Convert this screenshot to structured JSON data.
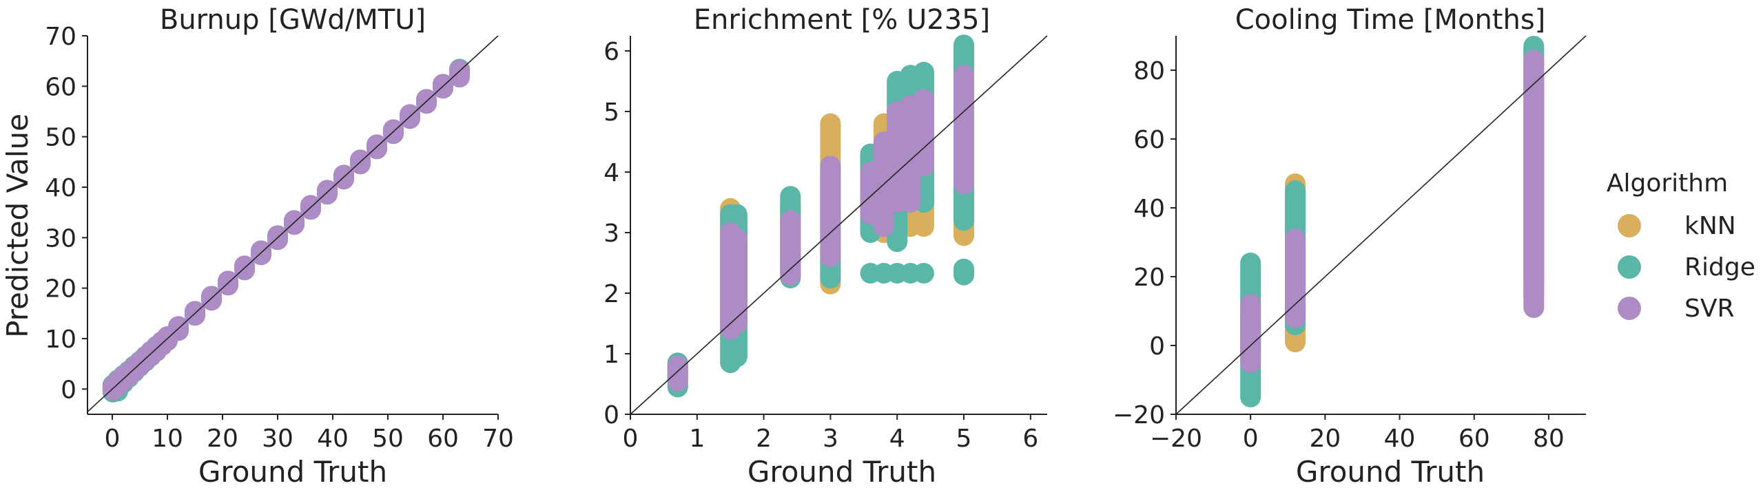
{
  "colors": {
    "knn": "#d9ae5c",
    "ridge": "#5ab7a7",
    "svr": "#ad8bc5",
    "axis": "#222222"
  },
  "legend": {
    "title": "Algorithm",
    "position": "right",
    "items": [
      {
        "label": "kNN",
        "color": "#d9ae5c"
      },
      {
        "label": "Ridge",
        "color": "#5ab7a7"
      },
      {
        "label": "SVR",
        "color": "#ad8bc5"
      }
    ]
  },
  "chart_data": [
    {
      "type": "scatter",
      "title": "Burnup [GWd/MTU]",
      "xlabel": "Ground Truth",
      "ylabel": "Predicted Value",
      "xlim": [
        -4.5,
        70
      ],
      "ylim": [
        -5,
        70
      ],
      "xticks": [
        0,
        10,
        20,
        30,
        40,
        50,
        60,
        70
      ],
      "yticks": [
        0,
        10,
        20,
        30,
        40,
        50,
        60,
        70
      ],
      "grid": false,
      "diagonal": true,
      "series": [
        {
          "name": "kNN",
          "color": "#d9ae5c",
          "points": [
            {
              "x": 0.1,
              "y": 0.1,
              "y2": 0.1
            },
            {
              "x": 1,
              "y": 1,
              "y2": 1
            },
            {
              "x": 2,
              "y": 2,
              "y2": 2
            },
            {
              "x": 3,
              "y": 3,
              "y2": 3
            },
            {
              "x": 4,
              "y": 4,
              "y2": 4
            },
            {
              "x": 5,
              "y": 5,
              "y2": 5
            },
            {
              "x": 6,
              "y": 6,
              "y2": 6
            },
            {
              "x": 7,
              "y": 7,
              "y2": 7
            },
            {
              "x": 8,
              "y": 8,
              "y2": 8
            },
            {
              "x": 9,
              "y": 9,
              "y2": 9
            },
            {
              "x": 10,
              "y": 10,
              "y2": 10
            },
            {
              "x": 12,
              "y": 12,
              "y2": 12
            },
            {
              "x": 15,
              "y": 15,
              "y2": 15
            },
            {
              "x": 18,
              "y": 18,
              "y2": 18
            },
            {
              "x": 21,
              "y": 21,
              "y2": 21
            },
            {
              "x": 24,
              "y": 24,
              "y2": 24
            },
            {
              "x": 27,
              "y": 27,
              "y2": 27
            },
            {
              "x": 30,
              "y": 30,
              "y2": 30
            },
            {
              "x": 33,
              "y": 33,
              "y2": 33
            },
            {
              "x": 36,
              "y": 36,
              "y2": 36
            },
            {
              "x": 39,
              "y": 39,
              "y2": 39
            },
            {
              "x": 42,
              "y": 42,
              "y2": 42
            },
            {
              "x": 45,
              "y": 45,
              "y2": 45
            },
            {
              "x": 48,
              "y": 48,
              "y2": 48
            },
            {
              "x": 51,
              "y": 51,
              "y2": 51
            },
            {
              "x": 54,
              "y": 54,
              "y2": 54
            },
            {
              "x": 57,
              "y": 57,
              "y2": 57
            },
            {
              "x": 60,
              "y": 60,
              "y2": 60
            },
            {
              "x": 63,
              "y": 63,
              "y2": 63
            }
          ]
        },
        {
          "name": "Ridge",
          "color": "#5ab7a7",
          "points": [
            {
              "x": 0.1,
              "y": -0.6,
              "y2": 0.8
            },
            {
              "x": 1,
              "y": -0.4,
              "y2": 1.8
            },
            {
              "x": 2,
              "y": 1.2,
              "y2": 2.7
            },
            {
              "x": 3,
              "y": 2.3,
              "y2": 3.6
            },
            {
              "x": 4,
              "y": 3.4,
              "y2": 4.6
            },
            {
              "x": 5,
              "y": 4.5,
              "y2": 5.5
            },
            {
              "x": 6,
              "y": 5.5,
              "y2": 6.5
            },
            {
              "x": 7,
              "y": 6.5,
              "y2": 7.5
            },
            {
              "x": 8,
              "y": 7.5,
              "y2": 8.5
            },
            {
              "x": 9,
              "y": 8.6,
              "y2": 9.4
            },
            {
              "x": 10,
              "y": 9.6,
              "y2": 10.4
            },
            {
              "x": 12,
              "y": 11.6,
              "y2": 12.4
            },
            {
              "x": 15,
              "y": 14.6,
              "y2": 15.4
            },
            {
              "x": 18,
              "y": 17.6,
              "y2": 18.4
            },
            {
              "x": 21,
              "y": 20.6,
              "y2": 21.4
            },
            {
              "x": 24,
              "y": 23.6,
              "y2": 24.4
            },
            {
              "x": 27,
              "y": 26.6,
              "y2": 27.4
            },
            {
              "x": 30,
              "y": 29.6,
              "y2": 30.4
            },
            {
              "x": 33,
              "y": 32.6,
              "y2": 33.4
            },
            {
              "x": 36,
              "y": 35.6,
              "y2": 36.4
            },
            {
              "x": 39,
              "y": 38.6,
              "y2": 39.4
            },
            {
              "x": 42,
              "y": 41.6,
              "y2": 42.4
            },
            {
              "x": 45,
              "y": 44.6,
              "y2": 45.4
            },
            {
              "x": 48,
              "y": 47.6,
              "y2": 48.4
            },
            {
              "x": 51,
              "y": 50.6,
              "y2": 51.4
            },
            {
              "x": 54,
              "y": 53.6,
              "y2": 54.4
            },
            {
              "x": 57,
              "y": 56.6,
              "y2": 57.4
            },
            {
              "x": 60,
              "y": 59.6,
              "y2": 60.4
            },
            {
              "x": 63,
              "y": 62.4,
              "y2": 63.4
            }
          ]
        },
        {
          "name": "SVR",
          "color": "#ad8bc5",
          "points": [
            {
              "x": 0.1,
              "y": -0.2,
              "y2": 0.5
            },
            {
              "x": 1,
              "y": 0.6,
              "y2": 1.5
            },
            {
              "x": 2,
              "y": 1.6,
              "y2": 2.5
            },
            {
              "x": 3,
              "y": 2.6,
              "y2": 3.4
            },
            {
              "x": 4,
              "y": 3.6,
              "y2": 4.4
            },
            {
              "x": 5,
              "y": 4.6,
              "y2": 5.4
            },
            {
              "x": 6,
              "y": 5.6,
              "y2": 6.4
            },
            {
              "x": 7,
              "y": 6.6,
              "y2": 7.4
            },
            {
              "x": 8,
              "y": 7.6,
              "y2": 8.4
            },
            {
              "x": 9,
              "y": 8.6,
              "y2": 9.4
            },
            {
              "x": 10,
              "y": 9.6,
              "y2": 10.4
            },
            {
              "x": 12,
              "y": 11.6,
              "y2": 12.4
            },
            {
              "x": 15,
              "y": 14.6,
              "y2": 15.4
            },
            {
              "x": 18,
              "y": 17.6,
              "y2": 18.4
            },
            {
              "x": 21,
              "y": 20.6,
              "y2": 21.4
            },
            {
              "x": 24,
              "y": 23.6,
              "y2": 24.4
            },
            {
              "x": 27,
              "y": 26.6,
              "y2": 27.4
            },
            {
              "x": 30,
              "y": 29.6,
              "y2": 30.4
            },
            {
              "x": 33,
              "y": 32.6,
              "y2": 33.4
            },
            {
              "x": 36,
              "y": 35.6,
              "y2": 36.4
            },
            {
              "x": 39,
              "y": 38.6,
              "y2": 39.4
            },
            {
              "x": 42,
              "y": 41.6,
              "y2": 42.4
            },
            {
              "x": 45,
              "y": 44.6,
              "y2": 45.4
            },
            {
              "x": 48,
              "y": 47.6,
              "y2": 48.4
            },
            {
              "x": 51,
              "y": 50.6,
              "y2": 51.4
            },
            {
              "x": 54,
              "y": 53.6,
              "y2": 54.4
            },
            {
              "x": 57,
              "y": 56.6,
              "y2": 57.4
            },
            {
              "x": 60,
              "y": 59.6,
              "y2": 60.4
            },
            {
              "x": 63,
              "y": 61.8,
              "y2": 63.2
            }
          ]
        }
      ]
    },
    {
      "type": "scatter",
      "title": "Enrichment [% U235]",
      "xlabel": "Ground Truth",
      "ylabel": "",
      "xlim": [
        0,
        6.25
      ],
      "ylim": [
        0,
        6.25
      ],
      "xticks": [
        0,
        1,
        2,
        3,
        4,
        5,
        6
      ],
      "yticks": [
        0,
        1,
        2,
        3,
        4,
        5,
        6
      ],
      "grid": false,
      "diagonal": true,
      "series": [
        {
          "name": "kNN",
          "color": "#d9ae5c",
          "points": [
            {
              "x": 0.71,
              "y": 0.6,
              "y2": 0.8
            },
            {
              "x": 1.5,
              "y": 1.5,
              "y2": 3.4
            },
            {
              "x": 1.6,
              "y": 1.5,
              "y2": 3.2
            },
            {
              "x": 2.4,
              "y": 2.3,
              "y2": 3.5
            },
            {
              "x": 3.0,
              "y": 2.15,
              "y2": 4.8
            },
            {
              "x": 3.6,
              "y": 3.1,
              "y2": 4.2
            },
            {
              "x": 3.8,
              "y": 3.0,
              "y2": 4.8
            },
            {
              "x": 4.0,
              "y": 3.0,
              "y2": 5.0
            },
            {
              "x": 4.2,
              "y": 3.1,
              "y2": 5.3
            },
            {
              "x": 4.4,
              "y": 3.1,
              "y2": 5.4
            },
            {
              "x": 5.0,
              "y": 2.95,
              "y2": 5.6
            }
          ]
        },
        {
          "name": "Ridge",
          "color": "#5ab7a7",
          "points": [
            {
              "x": 0.71,
              "y": 0.45,
              "y2": 0.85
            },
            {
              "x": 1.5,
              "y": 0.85,
              "y2": 3.3
            },
            {
              "x": 1.6,
              "y": 0.95,
              "y2": 3.3
            },
            {
              "x": 2.4,
              "y": 2.25,
              "y2": 3.6
            },
            {
              "x": 3.0,
              "y": 2.25,
              "y2": 4.0
            },
            {
              "x": 3.6,
              "y": 3.0,
              "y2": 4.3
            },
            {
              "x": 3.8,
              "y": 3.3,
              "y2": 4.4
            },
            {
              "x": 4.0,
              "y": 2.85,
              "y2": 5.5
            },
            {
              "x": 4.2,
              "y": 3.5,
              "y2": 5.6
            },
            {
              "x": 4.4,
              "y": 3.5,
              "y2": 5.65
            },
            {
              "x": 5.0,
              "y": 3.2,
              "y2": 6.1
            },
            {
              "x": 3.6,
              "y": 2.33,
              "y2": 2.33
            },
            {
              "x": 3.8,
              "y": 2.33,
              "y2": 2.33
            },
            {
              "x": 4.0,
              "y": 2.33,
              "y2": 2.33
            },
            {
              "x": 4.2,
              "y": 2.33,
              "y2": 2.33
            },
            {
              "x": 4.4,
              "y": 2.33,
              "y2": 2.33
            },
            {
              "x": 5.0,
              "y": 2.3,
              "y2": 2.4
            },
            {
              "x": 4.2,
              "y": 3.6,
              "y2": 3.8
            },
            {
              "x": 4.4,
              "y": 3.6,
              "y2": 3.8
            }
          ]
        },
        {
          "name": "SVR",
          "color": "#ad8bc5",
          "points": [
            {
              "x": 0.71,
              "y": 0.55,
              "y2": 0.8
            },
            {
              "x": 1.5,
              "y": 1.4,
              "y2": 3.0
            },
            {
              "x": 1.6,
              "y": 1.5,
              "y2": 2.9
            },
            {
              "x": 2.4,
              "y": 2.3,
              "y2": 3.2
            },
            {
              "x": 3.0,
              "y": 2.6,
              "y2": 4.1
            },
            {
              "x": 3.6,
              "y": 3.3,
              "y2": 4.0
            },
            {
              "x": 3.8,
              "y": 3.1,
              "y2": 4.5
            },
            {
              "x": 4.0,
              "y": 3.5,
              "y2": 5.0
            },
            {
              "x": 4.2,
              "y": 3.5,
              "y2": 5.1
            },
            {
              "x": 4.4,
              "y": 4.1,
              "y2": 5.2
            },
            {
              "x": 5.0,
              "y": 3.8,
              "y2": 5.6
            }
          ]
        }
      ]
    },
    {
      "type": "scatter",
      "title": "Cooling Time [Months]",
      "xlabel": "Ground Truth",
      "ylabel": "",
      "xlim": [
        -20,
        90
      ],
      "ylim": [
        -20,
        90
      ],
      "xticks": [
        -20,
        0,
        20,
        40,
        60,
        80
      ],
      "yticks": [
        -20,
        0,
        20,
        40,
        60,
        80
      ],
      "grid": false,
      "diagonal": true,
      "series": [
        {
          "name": "kNN",
          "color": "#d9ae5c",
          "points": [
            {
              "x": 0,
              "y": -2,
              "y2": 8
            },
            {
              "x": 12,
              "y": 1,
              "y2": 47
            },
            {
              "x": 76,
              "y": 14,
              "y2": 85
            }
          ]
        },
        {
          "name": "Ridge",
          "color": "#5ab7a7",
          "points": [
            {
              "x": 0,
              "y": -15,
              "y2": 24
            },
            {
              "x": 12,
              "y": 6,
              "y2": 45
            },
            {
              "x": 76,
              "y": 18,
              "y2": 87
            }
          ]
        },
        {
          "name": "SVR",
          "color": "#ad8bc5",
          "points": [
            {
              "x": 0,
              "y": -5,
              "y2": 12
            },
            {
              "x": 12,
              "y": 8,
              "y2": 31
            },
            {
              "x": 76,
              "y": 11,
              "y2": 83
            }
          ]
        }
      ]
    }
  ]
}
